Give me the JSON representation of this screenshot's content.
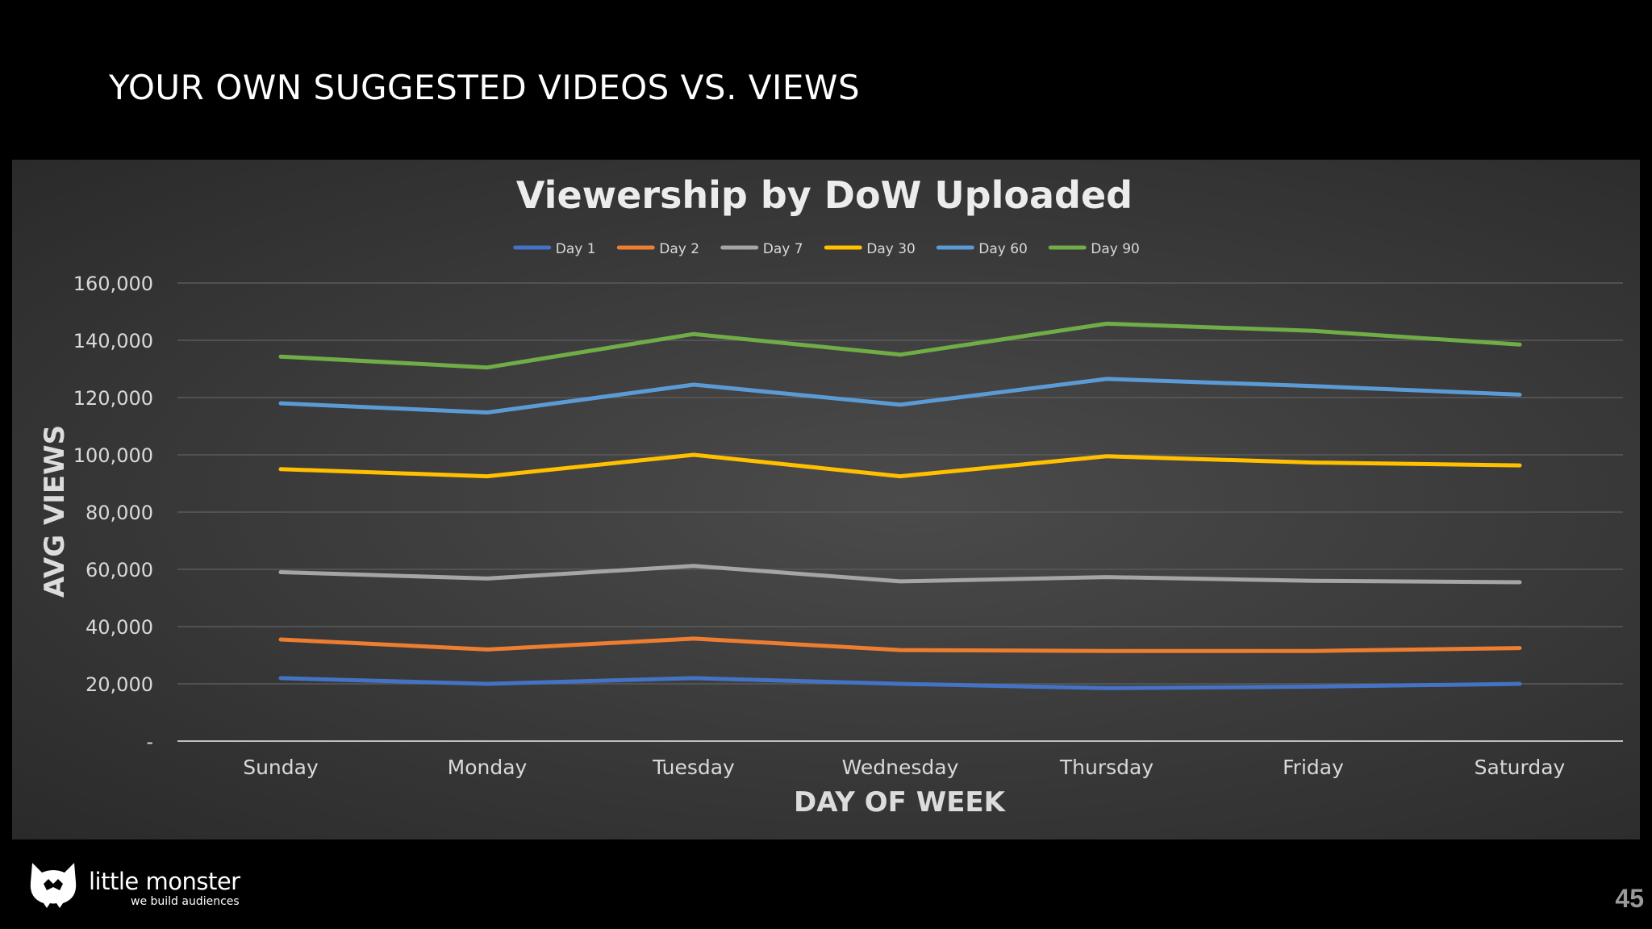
{
  "slide": {
    "title": "YOUR OWN SUGGESTED VIDEOS VS. VIEWS",
    "page_number": "45"
  },
  "brand": {
    "name": "little monster",
    "tagline": "we build audiences",
    "logo_icon": "monster-cat-icon"
  },
  "chart_data": {
    "type": "line",
    "title": "Viewership by DoW Uploaded",
    "xlabel": "DAY OF WEEK",
    "ylabel": "AVG VIEWS",
    "categories": [
      "Sunday",
      "Monday",
      "Tuesday",
      "Wednesday",
      "Thursday",
      "Friday",
      "Saturday"
    ],
    "ylim": [
      0,
      160000
    ],
    "yticks": [
      0,
      20000,
      40000,
      60000,
      80000,
      100000,
      120000,
      140000,
      160000
    ],
    "ytick_labels": [
      "-",
      "20,000",
      "40,000",
      "60,000",
      "80,000",
      "100,000",
      "120,000",
      "140,000",
      "160,000"
    ],
    "grid": true,
    "legend_position": "top-center",
    "series": [
      {
        "name": "Day 1",
        "color": "#4472c4",
        "values": [
          22000,
          20000,
          22000,
          20000,
          18500,
          19000,
          20000
        ]
      },
      {
        "name": "Day 2",
        "color": "#ed7d31",
        "values": [
          35500,
          32000,
          35800,
          31800,
          31500,
          31500,
          32500
        ]
      },
      {
        "name": "Day 7",
        "color": "#a5a5a5",
        "values": [
          59000,
          56800,
          61200,
          55800,
          57300,
          56000,
          55500
        ]
      },
      {
        "name": "Day 30",
        "color": "#ffc000",
        "values": [
          95000,
          92500,
          100000,
          92500,
          99500,
          97300,
          96300
        ]
      },
      {
        "name": "Day 60",
        "color": "#5b9bd5",
        "values": [
          118000,
          114800,
          124500,
          117500,
          126500,
          124000,
          121000
        ]
      },
      {
        "name": "Day 90",
        "color": "#70ad47",
        "values": [
          134300,
          130500,
          142200,
          135000,
          145800,
          143300,
          138500
        ]
      }
    ]
  }
}
